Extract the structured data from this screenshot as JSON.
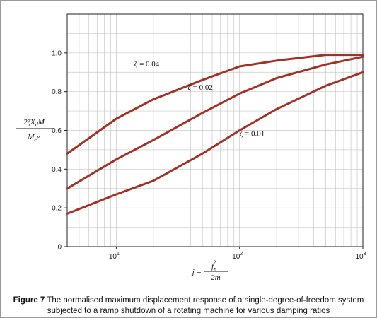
{
  "chart_data": {
    "type": "line",
    "x_scale": "log",
    "xlim": [
      4,
      1000
    ],
    "ylim": [
      0,
      1.2
    ],
    "grid": true,
    "y_ticks": [
      "0",
      "0.2",
      "0.4",
      "0.6",
      "0.8",
      "1.0"
    ],
    "x_ticks": [
      {
        "base": "10",
        "exp": "1"
      },
      {
        "base": "10",
        "exp": "2"
      },
      {
        "base": "10",
        "exp": "3"
      }
    ],
    "ylabel": {
      "num_pre": "2ζX",
      "num_sub": "d",
      "num_post": "M",
      "den_pre": "M",
      "den_sub": "e",
      "den_post": "e"
    },
    "xlabel": {
      "lhs": "j =",
      "num": "f",
      "num_sub": "n",
      "num_sup": "2",
      "den": "2m"
    },
    "line_color": "#a33024",
    "series": [
      {
        "name": "ζ = 0.04",
        "x": [
          4,
          10,
          20,
          50,
          100,
          200,
          500,
          1000
        ],
        "y": [
          0.48,
          0.66,
          0.76,
          0.86,
          0.93,
          0.96,
          0.99,
          0.99
        ]
      },
      {
        "name": "ζ = 0.02",
        "x": [
          4,
          10,
          20,
          50,
          100,
          200,
          500,
          1000
        ],
        "y": [
          0.3,
          0.45,
          0.55,
          0.69,
          0.79,
          0.87,
          0.94,
          0.98
        ]
      },
      {
        "name": "ζ = 0.01",
        "x": [
          4,
          10,
          20,
          50,
          100,
          200,
          500,
          1000
        ],
        "y": [
          0.17,
          0.27,
          0.34,
          0.48,
          0.6,
          0.71,
          0.83,
          0.9
        ]
      }
    ],
    "annotations": [
      "ζ = 0.04",
      "ζ = 0.02",
      "ζ = 0.01"
    ]
  },
  "caption": {
    "label": "Figure 7",
    "text1": "The normalised maximum displacement response of a single-degree-of-freedom system",
    "text2": "subjected to a ramp shutdown of a rotating machine for various damping ratios"
  }
}
